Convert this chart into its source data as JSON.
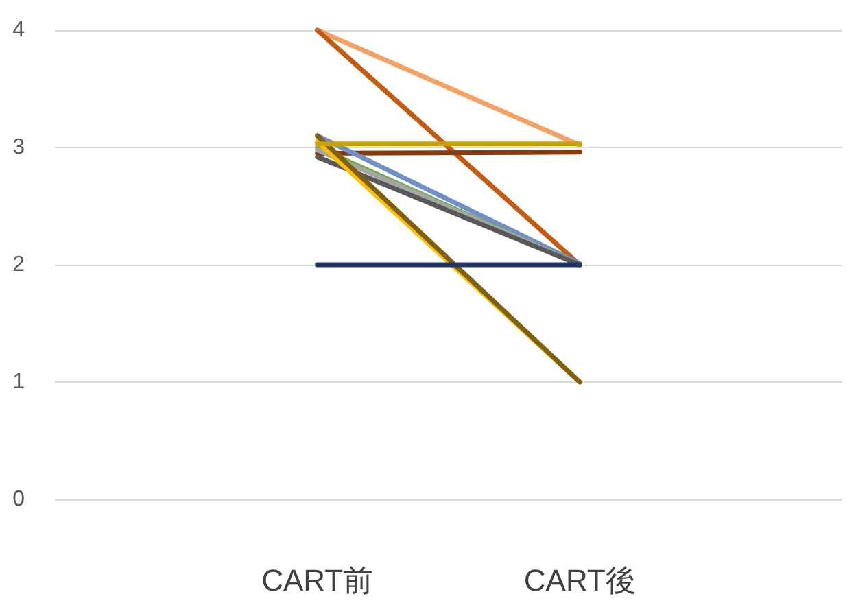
{
  "chart_data": {
    "type": "line",
    "categories": [
      "CART前",
      "CART後"
    ],
    "series": [
      {
        "color": "#f4a164",
        "values": [
          4,
          3.02
        ]
      },
      {
        "color": "#c55a11",
        "values": [
          4,
          2
        ]
      },
      {
        "color": "#843c0c",
        "values": [
          2.95,
          2.96
        ]
      },
      {
        "color": "#6f8fc9",
        "values": [
          3.1,
          2.01
        ]
      },
      {
        "color": "#70ad47",
        "values": [
          3.0,
          2.0
        ]
      },
      {
        "color": "#a5a5a5",
        "values": [
          2.98,
          2.0
        ]
      },
      {
        "color": "#595959",
        "values": [
          2.92,
          2.0
        ]
      },
      {
        "color": "#ffc000",
        "values": [
          3.05,
          1
        ]
      },
      {
        "color": "#7f6011",
        "values": [
          3.1,
          1
        ]
      },
      {
        "color": "#c9a10a",
        "values": [
          3.03,
          3.03
        ]
      },
      {
        "color": "#1f3864",
        "values": [
          2,
          2
        ]
      }
    ],
    "ylim": [
      0,
      4
    ],
    "yticks": [
      0,
      1,
      2,
      3,
      4
    ],
    "grid": "y",
    "marker": "none",
    "line_style": "solid"
  }
}
